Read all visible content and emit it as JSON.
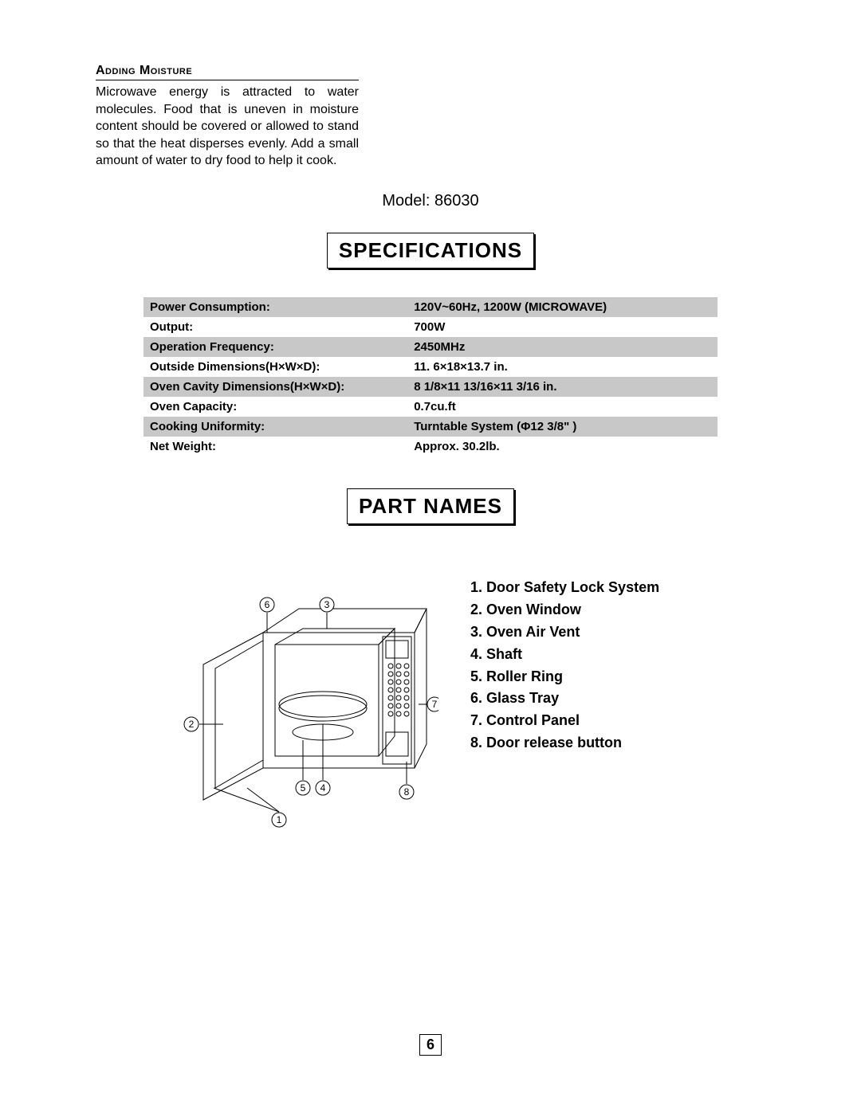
{
  "moisture": {
    "heading": "Adding Moisture",
    "body": "Microwave energy is attracted to water molecules. Food that is uneven in moisture content should be covered or allowed to stand so that the heat disperses evenly. Add a small amount of water to dry food to help it cook."
  },
  "model_label": "Model:",
  "model_value": "86030",
  "spec_title": "SPECIFICATIONS",
  "spec_table": {
    "row_bg_gray": "#c8c8c8",
    "row_bg_white": "#ffffff",
    "rows": [
      {
        "key": "Power Consumption:",
        "val": "120V~60Hz, 1200W (MICROWAVE)",
        "gray": true
      },
      {
        "key": "Output:",
        "val": "700W",
        "gray": false
      },
      {
        "key": "Operation Frequency:",
        "val": "2450MHz",
        "gray": true
      },
      {
        "key": "Outside Dimensions(H×W×D):",
        "val": "11. 6×18×13.7 in.",
        "gray": false
      },
      {
        "key": "Oven Cavity Dimensions(H×W×D):",
        "val": "8 1/8×11 13/16×11 3/16 in.",
        "gray": true
      },
      {
        "key": "Oven Capacity:",
        "val": "0.7cu.ft",
        "gray": false
      },
      {
        "key": "Cooking Uniformity:",
        "val": "Turntable System (Φ12 3/8\" )",
        "gray": true
      },
      {
        "key": "Net Weight:",
        "val": "Approx. 30.2lb.",
        "gray": false
      }
    ]
  },
  "parts_title": "PART NAMES",
  "parts": [
    "Door Safety Lock System",
    "Oven Window",
    "Oven Air Vent",
    "Shaft",
    "Roller Ring",
    "Glass Tray",
    "Control Panel",
    "Door release button"
  ],
  "diagram": {
    "callouts": [
      "1",
      "2",
      "3",
      "4",
      "5",
      "6",
      "7",
      "8"
    ],
    "stroke": "#000000",
    "stroke_width": 1
  },
  "page_number": "6"
}
